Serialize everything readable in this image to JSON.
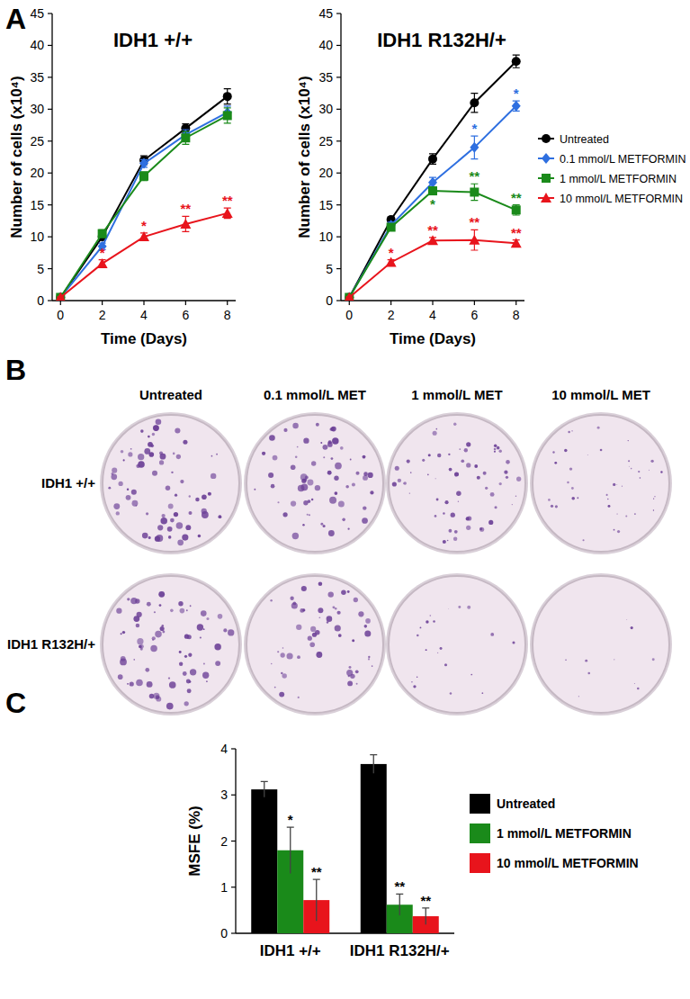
{
  "panels": [
    "A",
    "B",
    "C"
  ],
  "chart_data": [
    {
      "type": "line",
      "title": "IDH1 +/+",
      "x_label": "Time (Days)",
      "y_label": "Number of cells (x10⁴)",
      "x": [
        0,
        2,
        4,
        6,
        8
      ],
      "xlim": [
        -0.4,
        8.4
      ],
      "xticks": [
        0,
        2,
        4,
        6,
        8
      ],
      "ylim": [
        0,
        45
      ],
      "yticks": [
        0,
        5,
        10,
        15,
        20,
        25,
        30,
        35,
        40,
        45
      ],
      "grid": false,
      "series": [
        {
          "color": "#000000",
          "marker": "circle",
          "values": [
            0.5,
            10.0,
            22.0,
            27.0,
            32.0
          ],
          "errors": [
            0.1,
            0.4,
            0.7,
            0.7,
            1.2
          ],
          "annotations": [
            null,
            null,
            null,
            null,
            null
          ]
        },
        {
          "color": "#2e6fe0",
          "marker": "diamond",
          "values": [
            0.5,
            8.5,
            21.5,
            26.0,
            29.5
          ],
          "errors": [
            0.1,
            0.5,
            0.6,
            0.8,
            1.0
          ],
          "annotations": [
            null,
            null,
            null,
            null,
            null
          ]
        },
        {
          "color": "#1a8a1a",
          "marker": "square",
          "values": [
            0.5,
            10.5,
            19.5,
            25.5,
            29.0
          ],
          "errors": [
            0.1,
            0.6,
            0.7,
            1.0,
            1.2
          ],
          "annotations": [
            null,
            null,
            null,
            null,
            null
          ]
        },
        {
          "color": "#e8141c",
          "marker": "triangle",
          "values": [
            0.5,
            5.8,
            10.0,
            12.0,
            13.7
          ],
          "errors": [
            0.1,
            0.6,
            0.6,
            1.2,
            0.8
          ],
          "annotations": [
            null,
            "*",
            "*",
            "**",
            "**"
          ]
        }
      ]
    },
    {
      "type": "line",
      "title": "IDH1 R132H/+",
      "x_label": "Time (Days)",
      "y_label": "Number of cells (x10⁴)",
      "x": [
        0,
        2,
        4,
        6,
        8
      ],
      "xlim": [
        -0.4,
        8.4
      ],
      "xticks": [
        0,
        2,
        4,
        6,
        8
      ],
      "ylim": [
        0,
        45
      ],
      "yticks": [
        0,
        5,
        10,
        15,
        20,
        25,
        30,
        35,
        40,
        45
      ],
      "grid": false,
      "legend": "right",
      "series": [
        {
          "name": "Untreated",
          "color": "#000000",
          "marker": "circle",
          "values": [
            0.5,
            12.7,
            22.2,
            31.0,
            37.5
          ],
          "errors": [
            0.1,
            0.4,
            0.8,
            1.5,
            1.0
          ],
          "annotations": [
            null,
            null,
            null,
            null,
            null
          ]
        },
        {
          "name": "0.1 mmol/L METFORMIN",
          "color": "#2e6fe0",
          "marker": "diamond",
          "values": [
            0.5,
            11.8,
            18.5,
            24.0,
            30.5
          ],
          "errors": [
            0.1,
            0.5,
            0.8,
            1.8,
            0.8
          ],
          "annotations": [
            null,
            null,
            null,
            "*",
            "*"
          ]
        },
        {
          "name": "1 mmol/L METFORMIN",
          "color": "#1a8a1a",
          "marker": "square",
          "values": [
            0.5,
            11.5,
            17.2,
            17.0,
            14.2
          ],
          "errors": [
            0.1,
            0.5,
            0.6,
            1.3,
            0.8
          ],
          "annotations": [
            null,
            null,
            "*",
            "**",
            "**"
          ]
        },
        {
          "name": "10 mmol/L METFORMIN",
          "color": "#e8141c",
          "marker": "triangle",
          "values": [
            0.5,
            6.0,
            9.4,
            9.5,
            9.0
          ],
          "errors": [
            0.1,
            0.4,
            0.5,
            1.6,
            0.5
          ],
          "annotations": [
            null,
            "*",
            "**",
            "**",
            "**"
          ]
        }
      ]
    },
    {
      "type": "bar",
      "y_label": "MSFE (%)",
      "categories": [
        "IDH1 +/+",
        "IDH1 R132H/+"
      ],
      "ylim": [
        0,
        4
      ],
      "yticks": [
        0,
        1,
        2,
        3,
        4
      ],
      "grid": false,
      "legend": "right",
      "series": [
        {
          "name": "Untreated",
          "color": "#000000",
          "values": [
            3.12,
            3.67
          ],
          "errors": [
            0.17,
            0.2
          ],
          "annotations": [
            null,
            null
          ]
        },
        {
          "name": "1 mmol/L METFORMIN",
          "color": "#1a8a1a",
          "values": [
            1.8,
            0.62
          ],
          "errors": [
            0.5,
            0.23
          ],
          "annotations": [
            "*",
            "**"
          ]
        },
        {
          "name": "10 mmol/L METFORMIN",
          "color": "#e8141c",
          "values": [
            0.72,
            0.37
          ],
          "errors": [
            0.45,
            0.18
          ],
          "annotations": [
            "**",
            "**"
          ]
        }
      ]
    }
  ],
  "colony_assay": {
    "columns": [
      "Untreated",
      "0.1 mmol/L MET",
      "1 mmol/L MET",
      "10 mmol/L MET"
    ],
    "rows": [
      "IDH1 +/+",
      "IDH1 R132H/+"
    ]
  }
}
